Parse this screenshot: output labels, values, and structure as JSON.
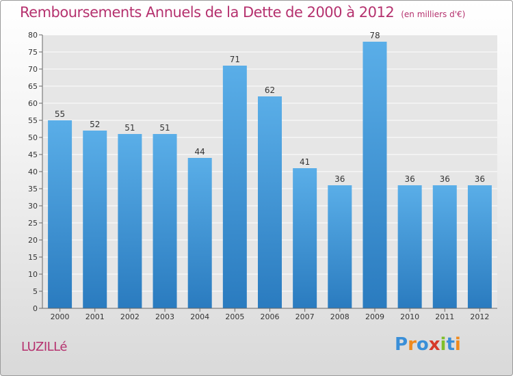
{
  "title": "Remboursements Annuels de la Dette de 2000 à 2012",
  "unit": "(en milliers d'€)",
  "commune": "LUZILLé",
  "logo": {
    "letters": [
      "P",
      "r",
      "o",
      "x",
      "i",
      "t",
      "i"
    ],
    "colors": [
      "#3a8fd8",
      "#f08a1d",
      "#3a8fd8",
      "#d63a2a",
      "#7fbf2a",
      "#3a8fd8",
      "#f08a1d"
    ]
  },
  "colors": {
    "bar_top": "#5aaee8",
    "bar_bottom": "#2a7bbf",
    "title": "#b5316e"
  },
  "chart_data": {
    "type": "bar",
    "title": "Remboursements Annuels de la Dette de 2000 à 2012",
    "categories": [
      "2000",
      "2001",
      "2002",
      "2003",
      "2004",
      "2005",
      "2006",
      "2007",
      "2008",
      "2009",
      "2010",
      "2011",
      "2012"
    ],
    "values": [
      55,
      52,
      51,
      51,
      44,
      71,
      62,
      41,
      36,
      78,
      36,
      36,
      36
    ],
    "ylim": [
      0,
      80
    ],
    "yticks": [
      0,
      5,
      10,
      15,
      20,
      25,
      30,
      35,
      40,
      45,
      50,
      55,
      60,
      65,
      70,
      75,
      80
    ],
    "grid": true,
    "xlabel": "",
    "ylabel": ""
  }
}
